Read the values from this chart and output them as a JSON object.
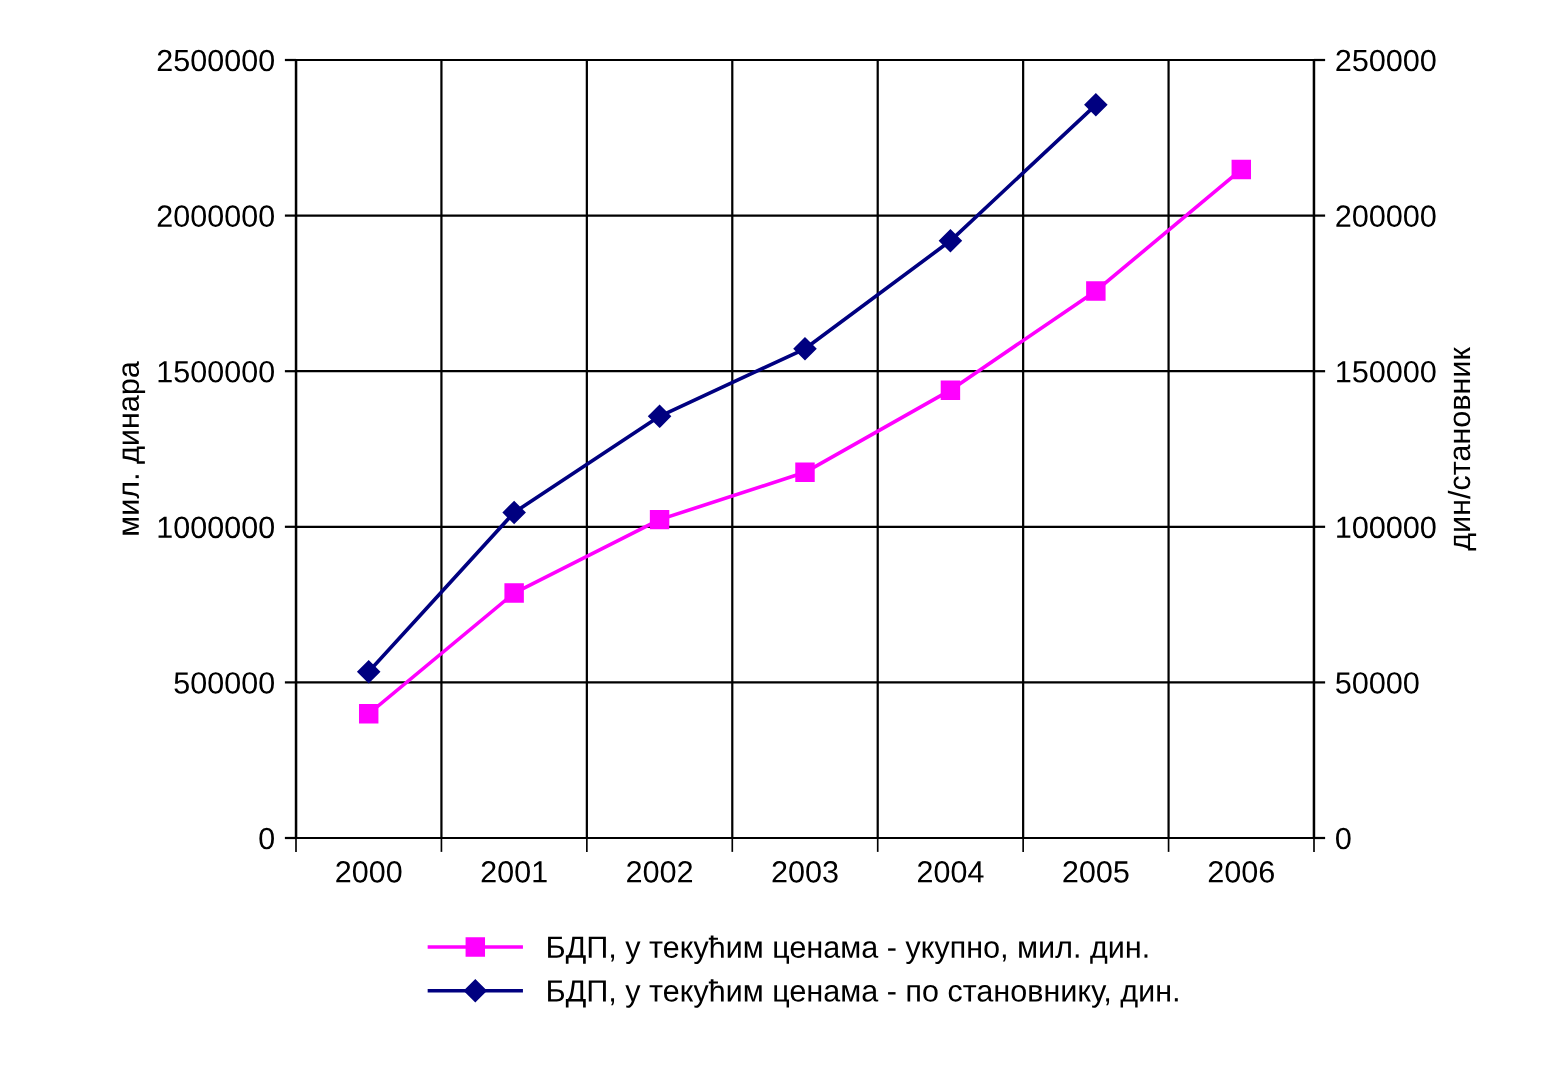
{
  "chart_data": {
    "type": "line",
    "categories": [
      "2000",
      "2001",
      "2002",
      "2003",
      "2004",
      "2005",
      "2006"
    ],
    "ylabel": "мил. динара",
    "y2label": "дин/становник",
    "ylim": [
      0,
      2500000
    ],
    "yticks": [
      0,
      500000,
      1000000,
      1500000,
      2000000,
      2500000
    ],
    "y2lim": [
      0,
      250000
    ],
    "y2ticks": [
      0,
      50000,
      100000,
      150000,
      200000,
      250000
    ],
    "grid": true,
    "legend": "bottom",
    "series": [
      {
        "name": "БДП, у текућим ценама - укупно, мил. дин.",
        "color": "#ff00ff",
        "marker": "square",
        "values": [
          399000,
          787000,
          1023000,
          1175000,
          1439000,
          1758000,
          2148000
        ]
      },
      {
        "name": "БДП, у текућим ценама - по становнику, дин.",
        "color": "#000080",
        "marker": "diamond",
        "axis": "y2",
        "values": [
          53400,
          104600,
          135500,
          157200,
          191900,
          235600,
          null
        ]
      }
    ]
  }
}
